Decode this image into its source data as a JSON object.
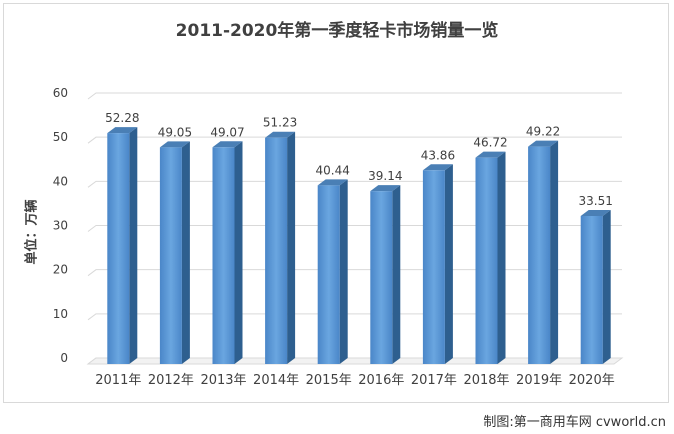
{
  "chart_data": {
    "type": "bar",
    "title": "2011-2020年第一季度轻卡市场销量一览",
    "ylabel": "单位：万辆",
    "xlabel": "",
    "categories": [
      "2011年",
      "2012年",
      "2013年",
      "2014年",
      "2015年",
      "2016年",
      "2017年",
      "2018年",
      "2019年",
      "2020年"
    ],
    "values": [
      52.28,
      49.05,
      49.07,
      51.23,
      40.44,
      39.14,
      43.86,
      46.72,
      49.22,
      33.51
    ],
    "value_labels": [
      "52.28",
      "49.05",
      "49.07",
      "51.23",
      "40.44",
      "39.14",
      "43.86",
      "46.72",
      "49.22",
      "33.51"
    ],
    "ylim": [
      0,
      60
    ],
    "yticks": [
      "0",
      "10",
      "20",
      "30",
      "40",
      "50",
      "60"
    ],
    "grid": true,
    "legend": "none",
    "bar_style": "3d-column",
    "colors": {
      "bar_front": "#5b9bd5",
      "bar_side": "#2e5f8f",
      "bar_top": "#4a7fb5"
    }
  },
  "source": "制图:第一商用车网 cvworld.cn"
}
